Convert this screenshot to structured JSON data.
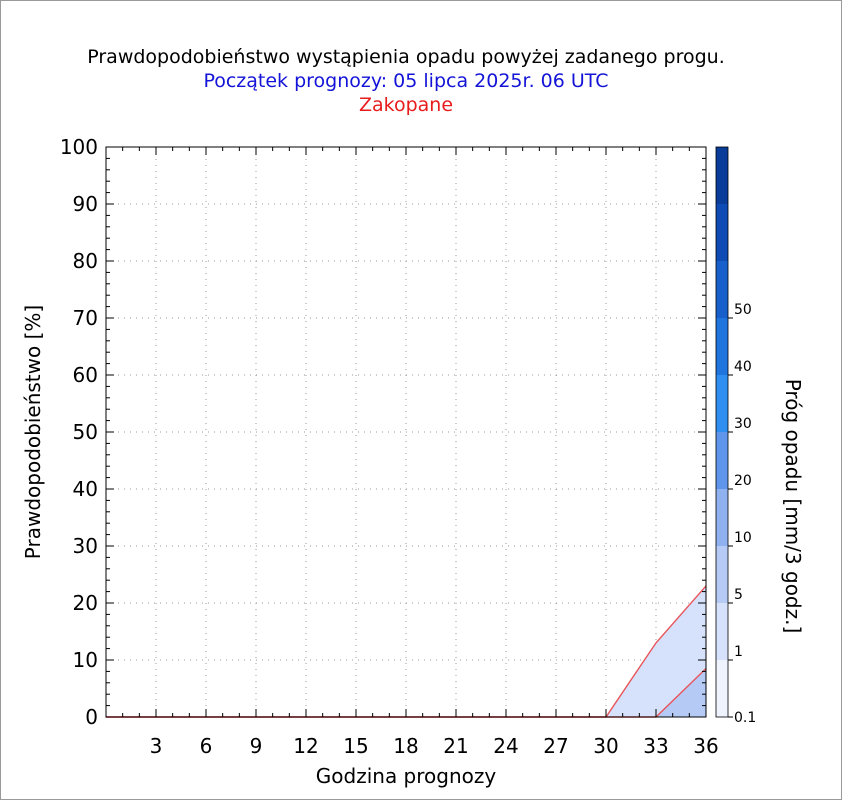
{
  "chart_data": {
    "type": "area",
    "title": "Prawdopodobieństwo wystąpienia opadu powyżej zadanego progu.",
    "subtitle": "Początek prognozy: 05 lipca 2025r. 06 UTC",
    "location": "Zakopane",
    "xlabel": "Godzina prognozy",
    "ylabel": "Prawdopodobieństwo [%]",
    "colorbar_label": "Próg opadu [mm/3 godz.]",
    "xlim": [
      0,
      36
    ],
    "ylim": [
      0,
      100
    ],
    "x_ticks": [
      3,
      6,
      9,
      12,
      15,
      18,
      21,
      24,
      27,
      30,
      33,
      36
    ],
    "y_ticks": [
      0,
      10,
      20,
      30,
      40,
      50,
      60,
      70,
      80,
      90,
      100
    ],
    "grid": true,
    "x": [
      0,
      3,
      6,
      9,
      12,
      15,
      18,
      21,
      24,
      27,
      30,
      33,
      36
    ],
    "series": [
      {
        "name": "0.1",
        "color": "#d6e2fb",
        "values": [
          0,
          0,
          0,
          0,
          0,
          0,
          0,
          0,
          0,
          0,
          0,
          13,
          23
        ]
      },
      {
        "name": "1",
        "color": "#b5cbf6",
        "values": [
          0,
          0,
          0,
          0,
          0,
          0,
          0,
          0,
          0,
          0,
          0,
          0,
          8.5
        ]
      }
    ],
    "colorbar": {
      "levels": [
        "0.1",
        "1",
        "5",
        "10",
        "20",
        "30",
        "40",
        "50"
      ],
      "colors": [
        "#eef3fe",
        "#d6e2fb",
        "#b5cbf6",
        "#8fb1ef",
        "#5f95ea",
        "#2e8ff0",
        "#1f74de",
        "#1760cc",
        "#0e4bb5",
        "#0a3c9a"
      ]
    },
    "colors": {
      "outline": "#e8555a",
      "title": "#000000",
      "subtitle": "#1414d8",
      "location": "#e81c1c"
    }
  }
}
